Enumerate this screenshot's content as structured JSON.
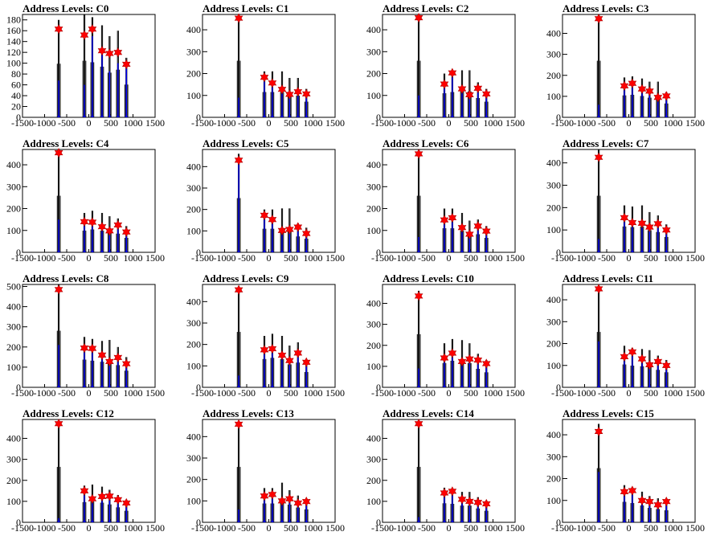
{
  "chart_data": [
    {
      "type": "bar",
      "title": "Address Levels: C0",
      "xlim": [
        -1500,
        1500
      ],
      "ylim": [
        0,
        190
      ],
      "xticks": [
        "-1500",
        "-1000",
        "-500",
        "0",
        "500",
        "1000",
        "1500"
      ],
      "yticks": [
        "0",
        "20",
        "40",
        "60",
        "80",
        "100",
        "120",
        "140",
        "160",
        "180"
      ],
      "ytick_values": [
        0,
        20,
        40,
        60,
        80,
        100,
        120,
        140,
        160,
        180
      ],
      "peaks_x": [
        -680,
        -100,
        80,
        300,
        470,
        660,
        850
      ],
      "peaks_y": [
        180,
        190,
        185,
        170,
        150,
        160,
        110
      ],
      "markers_y": [
        163,
        152,
        163,
        123,
        118,
        120,
        98
      ],
      "blue_y": [
        68,
        60,
        150,
        130,
        85,
        100,
        95
      ]
    },
    {
      "type": "bar",
      "title": "Address Levels: C1",
      "xlim": [
        -1500,
        1500
      ],
      "ylim": [
        0,
        470
      ],
      "xticks": [
        "-1500",
        "-1000",
        "-500",
        "0",
        "500",
        "1000",
        "1500"
      ],
      "yticks": [
        "0",
        "100",
        "200",
        "300",
        "400"
      ],
      "ytick_values": [
        0,
        100,
        200,
        300,
        400
      ],
      "peaks_x": [
        -680,
        -100,
        80,
        300,
        470,
        660,
        850
      ],
      "peaks_y": [
        470,
        210,
        210,
        210,
        180,
        180,
        130
      ],
      "markers_y": [
        453,
        183,
        157,
        128,
        105,
        117,
        107
      ],
      "blue_y": [
        90,
        180,
        150,
        120,
        95,
        110,
        100
      ]
    },
    {
      "type": "bar",
      "title": "Address Levels: C2",
      "xlim": [
        -1500,
        1500
      ],
      "ylim": [
        0,
        470
      ],
      "xticks": [
        "-1500",
        "-1000",
        "-500",
        "0",
        "500",
        "1000",
        "1500"
      ],
      "yticks": [
        "0",
        "100",
        "200",
        "300",
        "400"
      ],
      "ytick_values": [
        0,
        100,
        200,
        300,
        400
      ],
      "peaks_x": [
        -680,
        -100,
        80,
        300,
        470,
        660,
        850
      ],
      "peaks_y": [
        470,
        200,
        210,
        215,
        215,
        160,
        130
      ],
      "markers_y": [
        455,
        152,
        203,
        130,
        103,
        133,
        107
      ],
      "blue_y": [
        100,
        140,
        190,
        125,
        95,
        125,
        100
      ]
    },
    {
      "type": "bar",
      "title": "Address Levels: C3",
      "xlim": [
        -1500,
        1500
      ],
      "ylim": [
        0,
        490
      ],
      "xticks": [
        "-1500",
        "-1000",
        "-500",
        "0",
        "500",
        "1000",
        "1500"
      ],
      "yticks": [
        "0",
        "100",
        "200",
        "300",
        "400"
      ],
      "ytick_values": [
        0,
        100,
        200,
        300,
        400
      ],
      "peaks_x": [
        -680,
        -100,
        80,
        300,
        470,
        660,
        850
      ],
      "peaks_y": [
        490,
        190,
        195,
        185,
        170,
        170,
        120
      ],
      "markers_y": [
        470,
        150,
        162,
        135,
        125,
        95,
        102
      ],
      "blue_y": [
        60,
        140,
        150,
        125,
        115,
        90,
        95
      ]
    },
    {
      "type": "bar",
      "title": "Address Levels: C4",
      "xlim": [
        -1500,
        1500
      ],
      "ylim": [
        0,
        470
      ],
      "xticks": [
        "-1500",
        "-1000",
        "-500",
        "0",
        "500",
        "1000",
        "1500"
      ],
      "yticks": [
        "0",
        "100",
        "200",
        "300",
        "400"
      ],
      "ytick_values": [
        0,
        100,
        200,
        300,
        400
      ],
      "peaks_x": [
        -680,
        -100,
        80,
        300,
        470,
        660,
        850
      ],
      "peaks_y": [
        470,
        180,
        190,
        180,
        165,
        155,
        120
      ],
      "markers_y": [
        455,
        140,
        138,
        117,
        98,
        125,
        93
      ],
      "blue_y": [
        150,
        130,
        130,
        110,
        90,
        115,
        85
      ]
    },
    {
      "type": "bar",
      "title": "Address Levels: C5",
      "xlim": [
        -1500,
        1500
      ],
      "ylim": [
        0,
        480
      ],
      "xticks": [
        "-1500",
        "-1000",
        "-500",
        "0",
        "500",
        "1000",
        "1500"
      ],
      "yticks": [
        "0",
        "100",
        "200",
        "300",
        "400"
      ],
      "ytick_values": [
        0,
        100,
        200,
        300,
        400
      ],
      "peaks_x": [
        -680,
        -100,
        80,
        300,
        470,
        660,
        850
      ],
      "peaks_y": [
        460,
        200,
        200,
        205,
        205,
        135,
        115
      ],
      "markers_y": [
        430,
        173,
        153,
        102,
        107,
        118,
        88
      ],
      "blue_y": [
        420,
        160,
        140,
        95,
        100,
        110,
        80
      ]
    },
    {
      "type": "bar",
      "title": "Address Levels: C6",
      "xlim": [
        -1500,
        1500
      ],
      "ylim": [
        0,
        470
      ],
      "xticks": [
        "-1500",
        "-1000",
        "-500",
        "0",
        "500",
        "1000",
        "1500"
      ],
      "yticks": [
        "0",
        "100",
        "200",
        "300",
        "400"
      ],
      "ytick_values": [
        0,
        100,
        200,
        300,
        400
      ],
      "peaks_x": [
        -680,
        -100,
        80,
        300,
        470,
        660,
        850
      ],
      "peaks_y": [
        470,
        200,
        200,
        180,
        145,
        150,
        120
      ],
      "markers_y": [
        450,
        148,
        158,
        113,
        83,
        120,
        97
      ],
      "blue_y": [
        70,
        135,
        145,
        105,
        80,
        110,
        90
      ]
    },
    {
      "type": "bar",
      "title": "Address Levels: C7",
      "xlim": [
        -1500,
        1500
      ],
      "ylim": [
        0,
        460
      ],
      "xticks": [
        "-1500",
        "-1000",
        "-500",
        "0",
        "500",
        "1000",
        "1500"
      ],
      "yticks": [
        "0",
        "100",
        "200",
        "300",
        "400"
      ],
      "ytick_values": [
        0,
        100,
        200,
        300,
        400
      ],
      "peaks_x": [
        -680,
        -100,
        80,
        300,
        470,
        660,
        850
      ],
      "peaks_y": [
        460,
        210,
        205,
        210,
        180,
        165,
        125
      ],
      "markers_y": [
        425,
        155,
        133,
        130,
        113,
        128,
        100
      ],
      "blue_y": [
        60,
        145,
        125,
        120,
        105,
        120,
        95
      ]
    },
    {
      "type": "bar",
      "title": "Address Levels: C8",
      "xlim": [
        -1500,
        1500
      ],
      "ylim": [
        0,
        510
      ],
      "xticks": [
        "-1500",
        "-1000",
        "-500",
        "0",
        "500",
        "1000",
        "1500"
      ],
      "yticks": [
        "0",
        "100",
        "200",
        "300",
        "400",
        "500"
      ],
      "ytick_values": [
        0,
        100,
        200,
        300,
        400,
        500
      ],
      "peaks_x": [
        -680,
        -100,
        80,
        300,
        470,
        660,
        850
      ],
      "peaks_y": [
        510,
        250,
        240,
        230,
        235,
        200,
        150
      ],
      "markers_y": [
        485,
        195,
        193,
        160,
        128,
        148,
        117
      ],
      "blue_y": [
        210,
        180,
        180,
        150,
        120,
        140,
        110
      ]
    },
    {
      "type": "bar",
      "title": "Address Levels: C9",
      "xlim": [
        -1500,
        1500
      ],
      "ylim": [
        0,
        480
      ],
      "xticks": [
        "-1500",
        "-1000",
        "-500",
        "0",
        "500",
        "1000",
        "1500"
      ],
      "yticks": [
        "0",
        "100",
        "200",
        "300",
        "400"
      ],
      "ytick_values": [
        0,
        100,
        200,
        300,
        400
      ],
      "peaks_x": [
        -680,
        -100,
        80,
        300,
        470,
        660,
        850
      ],
      "peaks_y": [
        470,
        240,
        250,
        240,
        195,
        210,
        130
      ],
      "markers_y": [
        455,
        175,
        180,
        150,
        125,
        160,
        117
      ],
      "blue_y": [
        55,
        160,
        165,
        140,
        115,
        150,
        110
      ]
    },
    {
      "type": "bar",
      "title": "Address Levels: C10",
      "xlim": [
        -1500,
        1500
      ],
      "ylim": [
        0,
        490
      ],
      "xticks": [
        "-1500",
        "-1000",
        "-500",
        "0",
        "500",
        "1000",
        "1500"
      ],
      "yticks": [
        "0",
        "100",
        "200",
        "300",
        "400"
      ],
      "ytick_values": [
        0,
        100,
        200,
        300,
        400
      ],
      "peaks_x": [
        -680,
        -100,
        80,
        300,
        470,
        660,
        850
      ],
      "peaks_y": [
        460,
        210,
        230,
        225,
        210,
        160,
        130
      ],
      "markers_y": [
        435,
        140,
        163,
        123,
        135,
        130,
        113
      ],
      "blue_y": [
        90,
        130,
        150,
        115,
        125,
        120,
        105
      ]
    },
    {
      "type": "bar",
      "title": "Address Levels: C11",
      "xlim": [
        -1500,
        1500
      ],
      "ylim": [
        0,
        470
      ],
      "xticks": [
        "-1500",
        "-1000",
        "-500",
        "0",
        "500",
        "1000",
        "1500"
      ],
      "yticks": [
        "0",
        "100",
        "200",
        "300",
        "400"
      ],
      "ytick_values": [
        0,
        100,
        200,
        300,
        400
      ],
      "peaks_x": [
        -680,
        -100,
        80,
        300,
        470,
        660,
        850
      ],
      "peaks_y": [
        460,
        190,
        180,
        175,
        170,
        145,
        125
      ],
      "markers_y": [
        450,
        140,
        162,
        130,
        103,
        118,
        100
      ],
      "blue_y": [
        210,
        130,
        150,
        120,
        95,
        110,
        95
      ]
    },
    {
      "type": "bar",
      "title": "Address Levels: C12",
      "xlim": [
        -1500,
        1500
      ],
      "ylim": [
        0,
        490
      ],
      "xticks": [
        "-1500",
        "-1000",
        "-500",
        "0",
        "500",
        "1000",
        "1500"
      ],
      "yticks": [
        "0",
        "100",
        "200",
        "300",
        "400"
      ],
      "ytick_values": [
        0,
        100,
        200,
        300,
        400
      ],
      "peaks_x": [
        -680,
        -100,
        80,
        300,
        470,
        660,
        850
      ],
      "peaks_y": [
        480,
        175,
        180,
        170,
        155,
        130,
        100
      ],
      "markers_y": [
        470,
        150,
        112,
        123,
        125,
        108,
        92
      ],
      "blue_y": [
        20,
        140,
        100,
        115,
        115,
        100,
        85
      ]
    },
    {
      "type": "bar",
      "title": "Address Levels: C13",
      "xlim": [
        -1500,
        1500
      ],
      "ylim": [
        0,
        480
      ],
      "xticks": [
        "-1500",
        "-1000",
        "-500",
        "0",
        "500",
        "1000",
        "1500"
      ],
      "yticks": [
        "0",
        "100",
        "200",
        "300",
        "400"
      ],
      "ytick_values": [
        0,
        100,
        200,
        300,
        400
      ],
      "peaks_x": [
        -680,
        -100,
        80,
        300,
        470,
        660,
        850
      ],
      "peaks_y": [
        470,
        160,
        160,
        185,
        150,
        125,
        110
      ],
      "markers_y": [
        458,
        123,
        130,
        100,
        110,
        90,
        97
      ],
      "blue_y": [
        60,
        115,
        120,
        95,
        100,
        85,
        90
      ]
    },
    {
      "type": "bar",
      "title": "Address Levels: C14",
      "xlim": [
        -1500,
        1500
      ],
      "ylim": [
        0,
        490
      ],
      "xticks": [
        "-1500",
        "-1000",
        "-500",
        "0",
        "500",
        "1000",
        "1500"
      ],
      "yticks": [
        "0",
        "100",
        "200",
        "300",
        "400"
      ],
      "ytick_values": [
        0,
        100,
        200,
        300,
        400
      ],
      "peaks_x": [
        -680,
        -100,
        80,
        300,
        470,
        660,
        850
      ],
      "peaks_y": [
        480,
        165,
        160,
        145,
        145,
        120,
        100
      ],
      "markers_y": [
        470,
        140,
        148,
        110,
        100,
        95,
        88
      ],
      "blue_y": [
        25,
        130,
        140,
        100,
        95,
        90,
        80
      ]
    },
    {
      "type": "bar",
      "title": "Address Levels: C15",
      "xlim": [
        -1500,
        1500
      ],
      "ylim": [
        0,
        470
      ],
      "xticks": [
        "-1500",
        "-1000",
        "-500",
        "0",
        "500",
        "1000",
        "1500"
      ],
      "yticks": [
        "0",
        "100",
        "200",
        "300",
        "400"
      ],
      "ytick_values": [
        0,
        100,
        200,
        300,
        400
      ],
      "peaks_x": [
        -680,
        -100,
        80,
        300,
        470,
        660,
        850
      ],
      "peaks_y": [
        450,
        170,
        160,
        140,
        120,
        110,
        100
      ],
      "markers_y": [
        415,
        140,
        145,
        100,
        95,
        80,
        95
      ],
      "blue_y": [
        230,
        130,
        135,
        95,
        90,
        75,
        90
      ]
    }
  ],
  "colors": {
    "frame": "#000000",
    "hist": "#000000",
    "fit": "#0000ff",
    "marker": "#ff0000"
  }
}
